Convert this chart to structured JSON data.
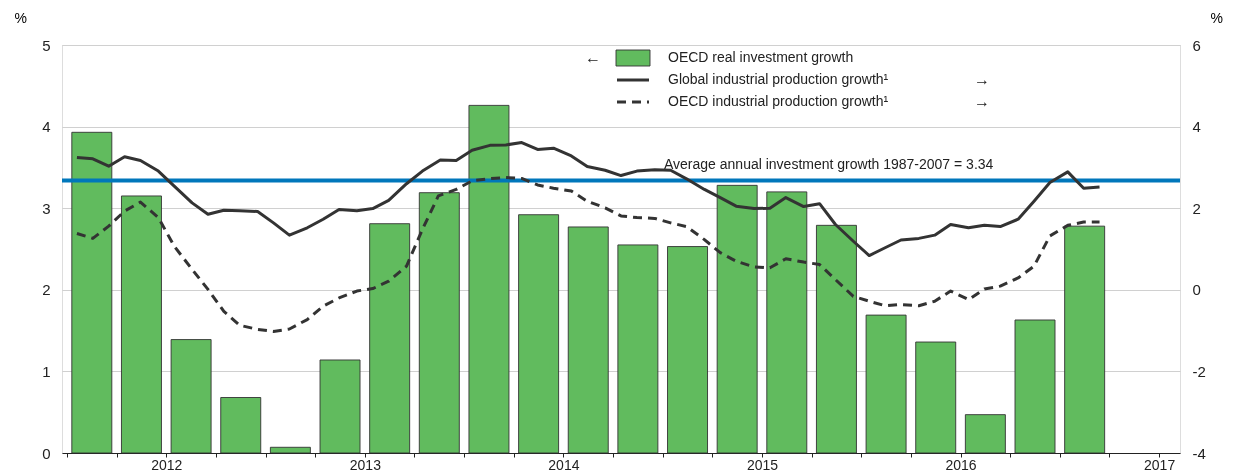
{
  "chart_data": {
    "type": "bar",
    "xlim": [
      2012,
      2017.58
    ],
    "xticks": [
      {
        "value": 2012,
        "label": null
      },
      {
        "value": 2012.25,
        "label": null
      },
      {
        "value": 2012.5,
        "label": "2012"
      },
      {
        "value": 2012.75,
        "label": null
      },
      {
        "value": 2013,
        "label": null
      },
      {
        "value": 2013.25,
        "label": null
      },
      {
        "value": 2013.5,
        "label": "2013"
      },
      {
        "value": 2013.75,
        "label": null
      },
      {
        "value": 2014,
        "label": null
      },
      {
        "value": 2014.25,
        "label": null
      },
      {
        "value": 2014.5,
        "label": "2014"
      },
      {
        "value": 2014.75,
        "label": null
      },
      {
        "value": 2015,
        "label": null
      },
      {
        "value": 2015.25,
        "label": null
      },
      {
        "value": 2015.5,
        "label": "2015"
      },
      {
        "value": 2015.75,
        "label": null
      },
      {
        "value": 2016,
        "label": null
      },
      {
        "value": 2016.25,
        "label": null
      },
      {
        "value": 2016.5,
        "label": "2016"
      },
      {
        "value": 2016.75,
        "label": null
      },
      {
        "value": 2017,
        "label": null
      },
      {
        "value": 2017.25,
        "label": null
      },
      {
        "value": 2017.5,
        "label": "2017"
      }
    ],
    "ylim": [
      0,
      5
    ],
    "yticks": [
      0,
      1,
      2,
      3,
      4,
      5
    ],
    "y2lim": [
      -4,
      6
    ],
    "y2ticks": [
      -4,
      -2,
      0,
      2,
      4,
      6
    ],
    "ylabel": "%",
    "y2label": "%",
    "grid": "y",
    "legend": "top",
    "ref_lines": [
      {
        "axis": "y",
        "value": 3.34,
        "label": "Average annual investment growth 1987-2007 = 3.34",
        "color": "#0077bb"
      }
    ],
    "annotations": [
      "←",
      "→",
      "→"
    ],
    "series": [
      {
        "name": "OECD real investment growth",
        "color": "#61bb5e",
        "x": [
          2012.125,
          2012.375,
          2012.625,
          2012.875,
          2013.125,
          2013.375,
          2013.625,
          2013.875,
          2014.125,
          2014.375,
          2014.625,
          2014.875,
          2015.125,
          2015.375,
          2015.625,
          2015.875,
          2016.125,
          2016.375,
          2016.625,
          2016.875,
          2017.125
        ],
        "values": [
          3.93,
          3.15,
          1.39,
          0.68,
          0.07,
          1.14,
          2.81,
          3.19,
          4.26,
          2.92,
          2.77,
          2.55,
          2.53,
          3.28,
          3.2,
          2.79,
          1.69,
          1.36,
          0.47,
          1.63,
          2.78
        ]
      },
      {
        "name": "Global industrial production growth¹",
        "type": "line",
        "axis": "y2",
        "line_style": "solid",
        "color": "#333333",
        "x": [
          2012.05,
          2012.13,
          2012.21,
          2012.29,
          2012.37,
          2012.46,
          2012.54,
          2012.63,
          2012.71,
          2012.79,
          2012.87,
          2012.96,
          2013.04,
          2013.12,
          2013.21,
          2013.29,
          2013.37,
          2013.46,
          2013.54,
          2013.62,
          2013.71,
          2013.79,
          2013.88,
          2013.96,
          2014.04,
          2014.13,
          2014.21,
          2014.29,
          2014.37,
          2014.45,
          2014.54,
          2014.62,
          2014.71,
          2014.79,
          2014.87,
          2014.96,
          2015.04,
          2015.12,
          2015.21,
          2015.29,
          2015.37,
          2015.46,
          2015.54,
          2015.62,
          2015.71,
          2015.79,
          2015.87,
          2015.96,
          2016.04,
          2016.12,
          2016.2,
          2016.29,
          2016.37,
          2016.45,
          2016.54,
          2016.62,
          2016.7,
          2016.79,
          2016.87,
          2016.95,
          2017.04,
          2017.12,
          2017.2
        ],
        "values": [
          3.24,
          3.21,
          3.03,
          3.26,
          3.17,
          2.91,
          2.54,
          2.13,
          1.85,
          1.95,
          1.94,
          1.92,
          1.64,
          1.34,
          1.52,
          1.73,
          1.97,
          1.94,
          1.99,
          2.19,
          2.6,
          2.91,
          3.18,
          3.17,
          3.42,
          3.54,
          3.55,
          3.61,
          3.44,
          3.47,
          3.28,
          3.02,
          2.93,
          2.8,
          2.91,
          2.94,
          2.93,
          2.72,
          2.46,
          2.26,
          2.05,
          1.99,
          2.0,
          2.26,
          2.04,
          2.11,
          1.6,
          1.19,
          0.84,
          1.03,
          1.22,
          1.26,
          1.34,
          1.6,
          1.52,
          1.58,
          1.55,
          1.73,
          2.17,
          2.63,
          2.89,
          2.49,
          2.52
        ]
      },
      {
        "name": "OECD industrial production growth¹",
        "type": "line",
        "axis": "y2",
        "line_style": "dashed",
        "color": "#333333",
        "x": [
          2012.05,
          2012.13,
          2012.21,
          2012.29,
          2012.37,
          2012.46,
          2012.54,
          2012.63,
          2012.71,
          2012.79,
          2012.87,
          2012.96,
          2013.04,
          2013.12,
          2013.21,
          2013.29,
          2013.37,
          2013.46,
          2013.54,
          2013.62,
          2013.71,
          2013.79,
          2013.87,
          2013.96,
          2014.04,
          2014.12,
          2014.21,
          2014.29,
          2014.37,
          2014.45,
          2014.54,
          2014.62,
          2014.71,
          2014.79,
          2014.87,
          2014.96,
          2015.04,
          2015.12,
          2015.21,
          2015.29,
          2015.37,
          2015.46,
          2015.54,
          2015.62,
          2015.71,
          2015.79,
          2015.87,
          2015.96,
          2016.04,
          2016.12,
          2016.2,
          2016.29,
          2016.37,
          2016.45,
          2016.54,
          2016.62,
          2016.7,
          2016.79,
          2016.87,
          2016.95,
          2017.04,
          2017.12,
          2017.2
        ],
        "values": [
          1.38,
          1.26,
          1.56,
          1.93,
          2.15,
          1.77,
          1.07,
          0.5,
          0.01,
          -0.53,
          -0.87,
          -0.97,
          -1.02,
          -0.96,
          -0.73,
          -0.4,
          -0.2,
          -0.03,
          0.03,
          0.21,
          0.58,
          1.48,
          2.3,
          2.46,
          2.67,
          2.72,
          2.75,
          2.73,
          2.57,
          2.49,
          2.42,
          2.17,
          2.01,
          1.81,
          1.77,
          1.75,
          1.64,
          1.55,
          1.23,
          0.91,
          0.7,
          0.56,
          0.54,
          0.76,
          0.68,
          0.62,
          0.25,
          -0.16,
          -0.28,
          -0.39,
          -0.36,
          -0.39,
          -0.28,
          -0.03,
          -0.24,
          0.02,
          0.09,
          0.29,
          0.58,
          1.32,
          1.58,
          1.66,
          1.66
        ]
      }
    ]
  }
}
